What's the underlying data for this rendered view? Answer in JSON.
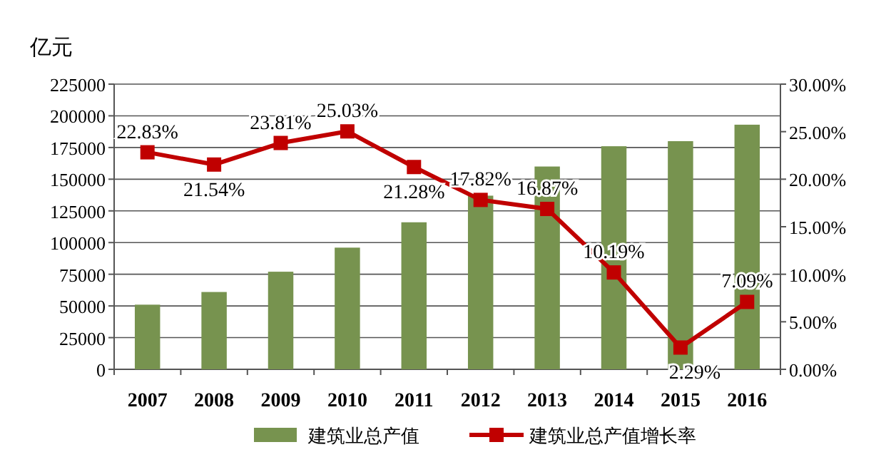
{
  "chart_data": {
    "type": "bar",
    "ylabel": "亿元",
    "categories": [
      "2007",
      "2008",
      "2009",
      "2010",
      "2011",
      "2012",
      "2013",
      "2014",
      "2015",
      "2016"
    ],
    "series": [
      {
        "name": "建筑业总产值",
        "color": "#77934f",
        "values": [
          51000,
          61000,
          77000,
          96000,
          116000,
          137000,
          160000,
          176000,
          180000,
          193000
        ]
      },
      {
        "name": "建筑业总产值增长率",
        "type": "line",
        "axis": "y2",
        "color": "#c00000",
        "marker": "square",
        "values": [
          22.83,
          21.54,
          23.81,
          25.03,
          21.28,
          17.82,
          16.87,
          10.19,
          2.29,
          7.09
        ],
        "value_labels": [
          "22.83%",
          "21.54%",
          "23.81%",
          "25.03%",
          "21.28%",
          "17.82%",
          "16.87%",
          "10.19%",
          "2.29%",
          "7.09%"
        ]
      }
    ],
    "ylim": [
      0,
      225000
    ],
    "yticks": [
      0,
      25000,
      50000,
      75000,
      100000,
      125000,
      150000,
      175000,
      200000,
      225000
    ],
    "y2lim": [
      0,
      30
    ],
    "y2ticks": [
      {
        "value": 0,
        "label": "0.00%"
      },
      {
        "value": 5,
        "label": "5.00%"
      },
      {
        "value": 10,
        "label": "10.00%"
      },
      {
        "value": 15,
        "label": "15.00%"
      },
      {
        "value": 20,
        "label": "20.00%"
      },
      {
        "value": 25,
        "label": "25.00%"
      },
      {
        "value": 30,
        "label": "30.00%"
      }
    ],
    "grid": "y",
    "legend": "bottom"
  }
}
